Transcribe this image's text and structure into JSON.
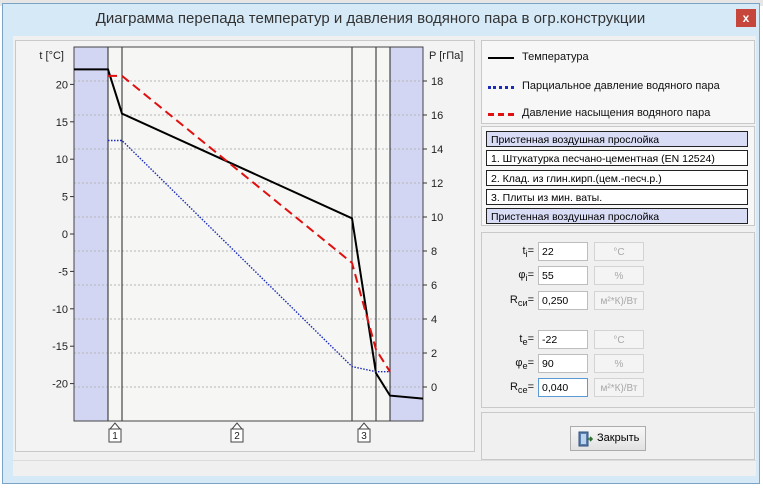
{
  "window": {
    "title": "Диаграмма перепада температур и давления водяного пара в огр.конструкции",
    "close_glyph": "x"
  },
  "chart_data": {
    "type": "line",
    "left_axis": {
      "label": "t [°C]",
      "ticks": [
        20,
        15,
        10,
        5,
        0,
        -5,
        -10,
        -15,
        -20
      ],
      "range": [
        -25,
        25
      ]
    },
    "right_axis": {
      "label": "P [гПа]",
      "ticks": [
        18,
        16,
        14,
        12,
        10,
        8,
        6,
        4,
        2,
        0
      ],
      "range": [
        -2,
        20
      ]
    },
    "grid": true,
    "series": [
      {
        "name": "Температура",
        "color": "#000000",
        "style": "solid",
        "axis": "left",
        "x": [
          0,
          1,
          2,
          3,
          4,
          5,
          6
        ],
        "values": [
          22,
          22,
          16.1,
          2.1,
          -18.6,
          -21.6,
          -22
        ]
      },
      {
        "name": "Парциальное давление водяного пара",
        "color": "#1a2bb8",
        "style": "dotted",
        "axis": "right",
        "x": [
          0,
          1,
          2,
          3,
          4,
          5,
          6
        ],
        "values": [
          null,
          14.5,
          14.5,
          1.2,
          0.9,
          0.9,
          null
        ]
      },
      {
        "name": "Давление насыщения водяного пара",
        "color": "#e01010",
        "style": "dashed",
        "axis": "right",
        "x": [
          0,
          1,
          2,
          3,
          4,
          5,
          6
        ],
        "values": [
          null,
          18.3,
          18.3,
          7.3,
          2.2,
          0.9,
          null
        ]
      }
    ],
    "layer_markers": [
      "1",
      "2",
      "3"
    ]
  },
  "legend": [
    {
      "label": "Температура",
      "color": "#000000",
      "style": "solid"
    },
    {
      "label": "Парциальное давление водяного пара",
      "color": "#1a2bb8",
      "style": "dotted"
    },
    {
      "label": "Давление насыщения водяного пара",
      "color": "#e01010",
      "style": "dashed"
    }
  ],
  "layers": [
    {
      "label": "Пристенная воздушная прослойка",
      "kind": "air"
    },
    {
      "label": "1. Штукатурка песчано-цементная (EN 12524)",
      "kind": "mat"
    },
    {
      "label": "2. Клад. из глин.кирп.(цем.-песч.р.)",
      "kind": "mat"
    },
    {
      "label": "3. Плиты из мин. ваты.",
      "kind": "mat"
    },
    {
      "label": "Пристенная воздушная прослойка",
      "kind": "air"
    }
  ],
  "params": {
    "ti": {
      "sym": "t",
      "sub": "i",
      "value": "22",
      "unit": "°C"
    },
    "phii": {
      "sym": "φ",
      "sub": "i",
      "value": "55",
      "unit": "%"
    },
    "rsi": {
      "sym": "R",
      "sub": "си",
      "value": "0,250",
      "unit": "м²*К)/Вт"
    },
    "te": {
      "sym": "t",
      "sub": "e",
      "value": "-22",
      "unit": "°C"
    },
    "phie": {
      "sym": "φ",
      "sub": "e",
      "value": "90",
      "unit": "%"
    },
    "rse": {
      "sym": "R",
      "sub": "се",
      "value": "0,040",
      "unit": "м²*К)/Вт"
    }
  },
  "close_button": {
    "label": "Закрыть",
    "icon": "exit-door-icon"
  }
}
